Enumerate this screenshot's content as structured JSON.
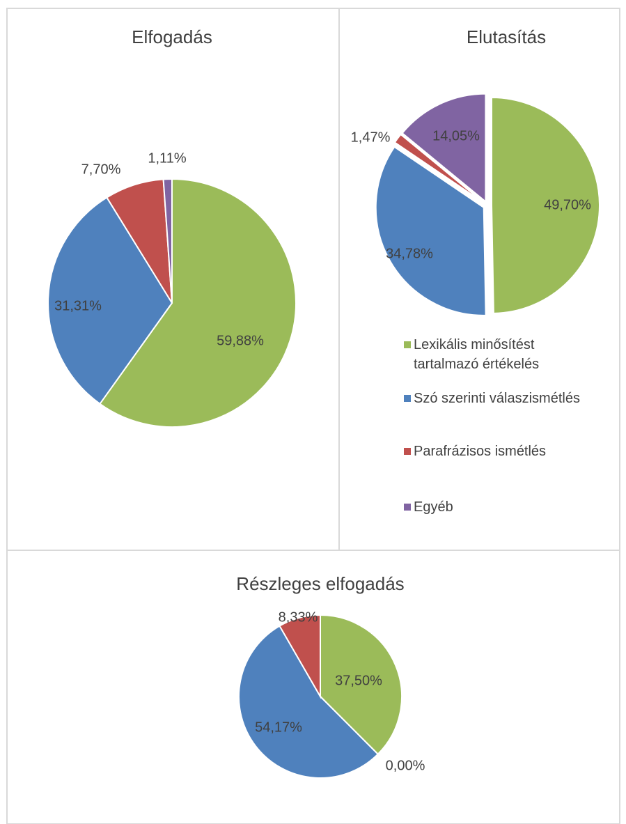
{
  "chart_data": [
    {
      "type": "pie",
      "title": "Elfogadás",
      "values": [
        59.88,
        31.31,
        7.7,
        1.11
      ],
      "value_labels": [
        "59,88%",
        "31,31%",
        "7,70%",
        "1,11%"
      ],
      "colors": [
        "#9bbb59",
        "#4f81bd",
        "#c0504d",
        "#8064a2"
      ]
    },
    {
      "type": "pie",
      "title": "Elutasítás",
      "categories": [
        "Lexikális minősítést tartalmazó értékelés",
        "Szó szerinti válaszismétlés",
        "Parafrázisos ismétlés",
        "Egyéb"
      ],
      "values": [
        49.7,
        34.78,
        1.47,
        14.05
      ],
      "value_labels": [
        "49,70%",
        "34,78%",
        "1,47%",
        "14,05%"
      ],
      "colors": [
        "#9bbb59",
        "#4f81bd",
        "#c0504d",
        "#8064a2"
      ]
    },
    {
      "type": "pie",
      "title": "Részleges elfogadás",
      "values": [
        37.5,
        0.0,
        54.17,
        8.33
      ],
      "value_labels": [
        "37,50%",
        "0,00%",
        "54,17%",
        "8,33%"
      ],
      "colors": [
        "#9bbb59",
        "#8064a2",
        "#4f81bd",
        "#c0504d"
      ]
    }
  ]
}
